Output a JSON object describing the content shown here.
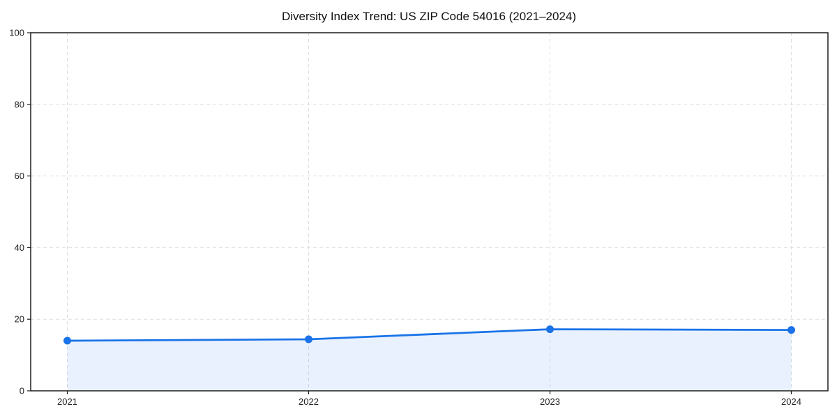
{
  "page": {
    "background": "#ffffff"
  },
  "chart_data": {
    "type": "line",
    "title": "Diversity Index Trend: US ZIP Code 54016 (2021–2024)",
    "x": [
      2021,
      2022,
      2023,
      2024
    ],
    "series": [
      {
        "name": "Diversity Index",
        "values": [
          14.0,
          14.4,
          17.2,
          17.0
        ]
      }
    ],
    "xticklabels": [
      "2021",
      "2022",
      "2023",
      "2024"
    ],
    "yticks": [
      0,
      20,
      40,
      60,
      80,
      100
    ],
    "yticklabels": [
      "0",
      "20",
      "40",
      "60",
      "80",
      "100"
    ],
    "xlabel": "",
    "ylabel": "",
    "ylim": [
      0,
      100
    ],
    "grid": true,
    "grid_style": "dashed",
    "legend_position": "none",
    "area_fill": true,
    "marker": "circle",
    "colors": {
      "line": "#1a73e8",
      "marker": "#1a73e8",
      "area": "rgba(26,115,232,0.10)",
      "grid": "#dedede",
      "spine": "#1c1c1c",
      "tick": "#1c1c1c",
      "text": "#1f1f1f",
      "title": "#111111",
      "background": "#ffffff"
    }
  }
}
